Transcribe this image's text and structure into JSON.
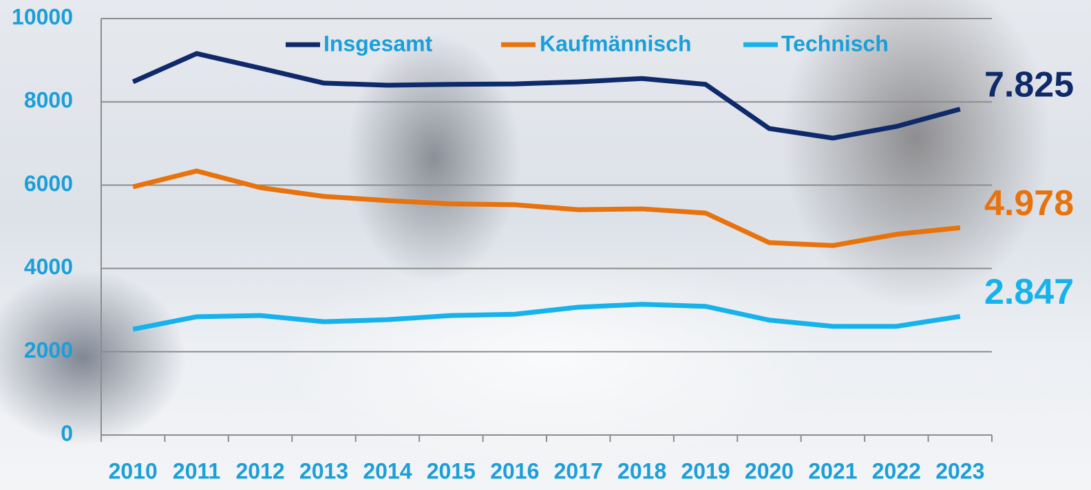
{
  "chart_data": {
    "type": "line",
    "categories": [
      "2010",
      "2011",
      "2012",
      "2013",
      "2014",
      "2015",
      "2016",
      "2017",
      "2018",
      "2019",
      "2020",
      "2021",
      "2022",
      "2023"
    ],
    "series": [
      {
        "name": "Insgesamt",
        "color": "#0f2a6a",
        "values": [
          8480,
          9160,
          8810,
          8450,
          8400,
          8420,
          8430,
          8480,
          8560,
          8420,
          7360,
          7130,
          7410,
          7825
        ],
        "value_labels": [
          null,
          null,
          null,
          null,
          null,
          null,
          null,
          null,
          null,
          null,
          null,
          null,
          null,
          "7.825"
        ]
      },
      {
        "name": "Kaufmännisch",
        "color": "#e8720c",
        "values": [
          5960,
          6340,
          5940,
          5730,
          5630,
          5550,
          5530,
          5410,
          5430,
          5330,
          4620,
          4550,
          4820,
          4978
        ],
        "value_labels": [
          null,
          null,
          null,
          null,
          null,
          null,
          null,
          null,
          null,
          null,
          null,
          null,
          null,
          "4.978"
        ]
      },
      {
        "name": "Technisch",
        "color": "#16b2ec",
        "values": [
          2540,
          2840,
          2870,
          2720,
          2770,
          2870,
          2900,
          3070,
          3140,
          3090,
          2760,
          2610,
          2610,
          2847
        ],
        "value_labels": [
          null,
          null,
          null,
          null,
          null,
          null,
          null,
          null,
          null,
          null,
          null,
          null,
          null,
          "2.847"
        ]
      }
    ],
    "ylim": [
      0,
      10000
    ],
    "yticks": [
      0,
      2000,
      4000,
      6000,
      8000,
      10000
    ],
    "grid": true
  }
}
